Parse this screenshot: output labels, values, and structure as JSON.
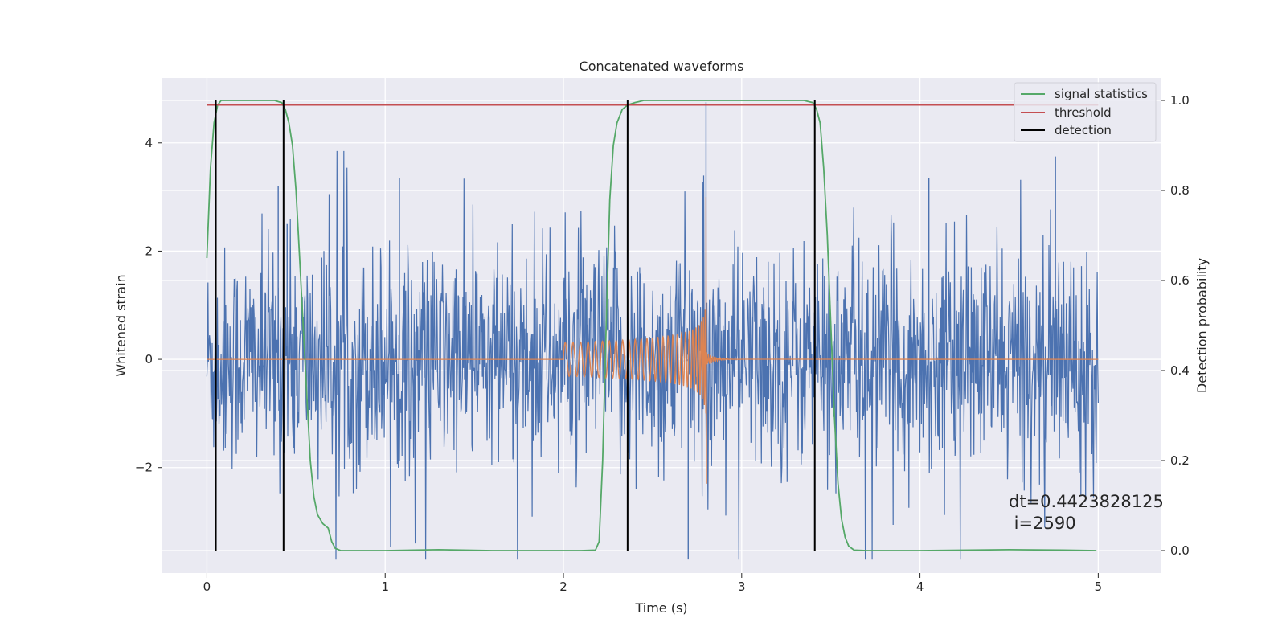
{
  "chart_data": {
    "type": "line",
    "title": "Concatenated waveforms",
    "xlabel": "Time (s)",
    "ylabel_left": "Whitened strain",
    "ylabel_right": "Detection probability",
    "xlim": [
      -0.25,
      5.35
    ],
    "ylim_left": [
      -3.95,
      5.2
    ],
    "ylim_right": [
      -0.05,
      1.05
    ],
    "x_ticks": [
      0,
      1,
      2,
      3,
      4,
      5
    ],
    "x_tick_labels": [
      "0",
      "1",
      "2",
      "3",
      "4",
      "5"
    ],
    "y_left_ticks": [
      -2,
      0,
      2,
      4
    ],
    "y_left_tick_labels": [
      "−2",
      "0",
      "2",
      "4"
    ],
    "y_right_ticks": [
      0.0,
      0.2,
      0.4,
      0.6,
      0.8,
      1.0
    ],
    "y_right_tick_labels": [
      "0.0",
      "0.2",
      "0.4",
      "0.6",
      "0.8",
      "1.0"
    ],
    "grid": true,
    "legend_position": "top-right",
    "legend": [
      {
        "label": "signal statistics",
        "color": "#55a868"
      },
      {
        "label": "threshold",
        "color": "#c44e52"
      },
      {
        "label": "detection",
        "color": "#000000"
      }
    ],
    "series": [
      {
        "name": "signal statistics",
        "axis": "right",
        "color": "#55a868",
        "x": [
          0.0,
          0.02,
          0.04,
          0.06,
          0.08,
          0.1,
          0.15,
          0.2,
          0.3,
          0.38,
          0.42,
          0.44,
          0.46,
          0.48,
          0.5,
          0.52,
          0.54,
          0.56,
          0.58,
          0.6,
          0.62,
          0.65,
          0.68,
          0.7,
          0.72,
          0.75,
          0.8,
          1.0,
          1.3,
          1.6,
          2.0,
          2.1,
          2.18,
          2.2,
          2.22,
          2.24,
          2.26,
          2.28,
          2.3,
          2.33,
          2.36,
          2.4,
          2.45,
          2.5,
          2.6,
          3.0,
          3.35,
          3.4,
          3.42,
          3.44,
          3.46,
          3.48,
          3.5,
          3.52,
          3.54,
          3.56,
          3.58,
          3.6,
          3.63,
          3.7,
          4.0,
          4.5,
          4.8,
          4.99
        ],
        "y": [
          0.65,
          0.85,
          0.95,
          0.99,
          1.0,
          1.0,
          1.0,
          1.0,
          1.0,
          1.0,
          0.995,
          0.98,
          0.95,
          0.9,
          0.8,
          0.65,
          0.5,
          0.35,
          0.2,
          0.12,
          0.08,
          0.06,
          0.05,
          0.02,
          0.005,
          0.0,
          0.0,
          0.0,
          0.002,
          0.0,
          0.0,
          0.0,
          0.001,
          0.02,
          0.2,
          0.5,
          0.78,
          0.9,
          0.95,
          0.98,
          0.99,
          0.995,
          1.0,
          1.0,
          1.0,
          1.0,
          1.0,
          0.995,
          0.98,
          0.95,
          0.85,
          0.7,
          0.5,
          0.3,
          0.15,
          0.07,
          0.03,
          0.01,
          0.001,
          0.0,
          0.0,
          0.002,
          0.001,
          0.0
        ]
      },
      {
        "name": "threshold",
        "axis": "right",
        "color": "#c44e52",
        "x": [
          0.0,
          5.0
        ],
        "y": [
          0.99,
          0.99
        ]
      }
    ],
    "detections_x": [
      0.05,
      0.43,
      2.36,
      3.41
    ],
    "detections_y_range": [
      0.0,
      1.0
    ],
    "noise_trace": {
      "color": "#4c72b0",
      "x_range": [
        0.0,
        5.0
      ],
      "typical_amplitude": 1.2,
      "peak_range": [
        -3.7,
        4.75
      ]
    },
    "chirp_trace": {
      "color": "#dd8452",
      "x_range": [
        2.0,
        2.8
      ],
      "amplitude_start": 0.6,
      "amplitude_peak": 3.0,
      "amplitude_min": -2.3,
      "ringdown_end": 3.0
    }
  },
  "annotation": {
    "dt": "dt=0.4423828125",
    "i": " i=2590"
  }
}
